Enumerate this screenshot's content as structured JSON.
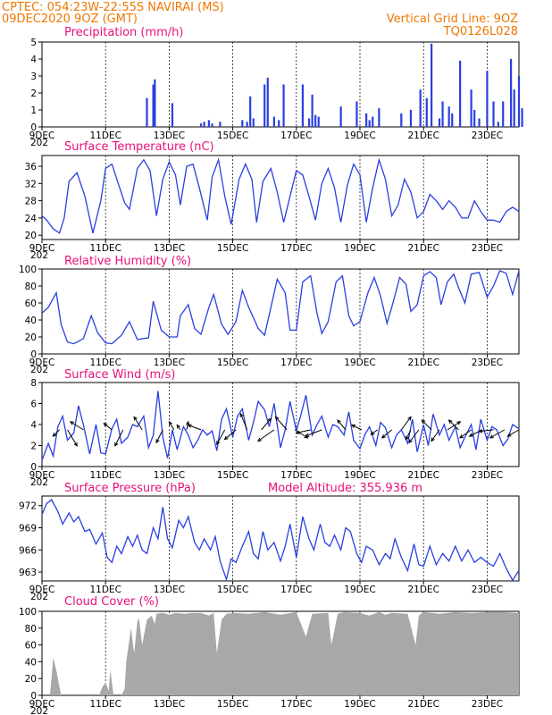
{
  "header": {
    "line1": "CPTEC:  054:23W-22:55S  NAVIRAI (MS)",
    "line2": "09DEC2020 9OZ (GMT)",
    "right1": "Vertical Grid Line: 9OZ",
    "right2": "TQ0126L028"
  },
  "x_ticks": [
    "9DEC",
    "11DEC",
    "13DEC",
    "15DEC",
    "17DEC",
    "19DEC",
    "21DEC",
    "23DEC"
  ],
  "x_tick_fragment": "202",
  "colors": {
    "line": "#2a3fe0",
    "bar": "#2a3fe0",
    "cloud": "#a8a8a8",
    "header": "#ee7700",
    "title": "#e8107a"
  },
  "chart_data": [
    {
      "type": "bar",
      "title": "Precipitation (mm/h)",
      "ylim": [
        0,
        5
      ],
      "yticks": [
        "0",
        "1",
        "2",
        "3",
        "4",
        "5"
      ],
      "x_days": [
        12.3,
        12.5,
        12.55,
        13.1,
        14.0,
        14.1,
        14.25,
        14.35,
        14.6,
        15.3,
        15.45,
        15.55,
        15.65,
        16.0,
        16.1,
        16.3,
        16.45,
        16.6,
        17.2,
        17.4,
        17.5,
        17.6,
        17.7,
        18.4,
        18.9,
        19.2,
        19.3,
        19.4,
        19.6,
        20.3,
        20.6,
        20.9,
        21.1,
        21.25,
        21.5,
        21.6,
        21.8,
        21.9,
        22.15,
        22.5,
        22.6,
        22.75,
        23.0,
        23.2,
        23.35,
        23.5,
        23.75,
        23.85,
        24.0,
        24.1
      ],
      "values": [
        1.7,
        2.5,
        2.8,
        1.4,
        0.2,
        0.3,
        0.4,
        0.2,
        0.3,
        0.4,
        0.3,
        1.8,
        0.5,
        2.5,
        2.9,
        0.6,
        0.4,
        2.5,
        2.5,
        0.5,
        1.9,
        0.7,
        0.6,
        1.2,
        1.5,
        0.8,
        0.4,
        0.6,
        1.1,
        0.8,
        1.0,
        2.2,
        1.7,
        4.9,
        0.5,
        1.5,
        1.2,
        0.8,
        3.9,
        2.2,
        1.0,
        0.5,
        3.3,
        1.5,
        0.3,
        1.5,
        4.0,
        2.2,
        3.0,
        1.1
      ]
    },
    {
      "type": "line",
      "title": "Surface Temperature (nC)",
      "ylim": [
        19,
        38.5
      ],
      "yticks": [
        "20",
        "24",
        "28",
        "32",
        "36"
      ],
      "x": [
        9.0,
        9.15,
        9.35,
        9.55,
        9.7,
        9.85,
        10.1,
        10.35,
        10.6,
        10.85,
        11.0,
        11.2,
        11.4,
        11.6,
        11.75,
        12.0,
        12.2,
        12.4,
        12.6,
        12.8,
        13.0,
        13.2,
        13.35,
        13.55,
        13.75,
        13.95,
        14.2,
        14.35,
        14.55,
        14.75,
        14.95,
        15.2,
        15.4,
        15.6,
        15.75,
        15.95,
        16.2,
        16.4,
        16.6,
        16.8,
        17.0,
        17.2,
        17.4,
        17.6,
        17.8,
        18.0,
        18.2,
        18.4,
        18.6,
        18.8,
        19.0,
        19.2,
        19.4,
        19.6,
        19.8,
        20.0,
        20.2,
        20.4,
        20.6,
        20.8,
        21.0,
        21.2,
        21.4,
        21.6,
        21.8,
        22.0,
        22.2,
        22.4,
        22.6,
        22.8,
        23.0,
        23.2,
        23.4,
        23.6,
        23.8,
        24.0
      ],
      "values": [
        24.5,
        23.5,
        21.5,
        20.5,
        24,
        32.5,
        34.5,
        29,
        20.5,
        28,
        35.5,
        36.5,
        32,
        27.5,
        26,
        35.5,
        37.5,
        35,
        24.5,
        33,
        37,
        34,
        27,
        36,
        36.5,
        31,
        23.5,
        33.5,
        37.5,
        29,
        22.5,
        33,
        36.5,
        33,
        23,
        32.5,
        35.5,
        30,
        23,
        29,
        35,
        34,
        29,
        23.5,
        32,
        35.5,
        31,
        23,
        31.5,
        36.5,
        34,
        23,
        31,
        37.5,
        33,
        24.5,
        27,
        33,
        30,
        24,
        25.5,
        29.5,
        28,
        26,
        28,
        26.5,
        24,
        24,
        28,
        25.5,
        23.5,
        23.5,
        23,
        25.5,
        26.5,
        25.5
      ]
    },
    {
      "type": "line",
      "title": "Relative Humidity (%)",
      "ylim": [
        0,
        100
      ],
      "yticks": [
        "0",
        "20",
        "40",
        "60",
        "80",
        "100"
      ],
      "x": [
        9.0,
        9.2,
        9.45,
        9.6,
        9.8,
        10.0,
        10.3,
        10.55,
        10.75,
        11.0,
        11.2,
        11.5,
        11.75,
        12.0,
        12.35,
        12.5,
        12.75,
        13.0,
        13.25,
        13.35,
        13.6,
        13.8,
        14.0,
        14.25,
        14.4,
        14.65,
        14.85,
        15.1,
        15.3,
        15.5,
        15.8,
        16.0,
        16.2,
        16.4,
        16.65,
        16.8,
        17.0,
        17.2,
        17.45,
        17.65,
        17.8,
        18.0,
        18.25,
        18.45,
        18.65,
        18.8,
        19.0,
        19.25,
        19.45,
        19.65,
        19.85,
        20.0,
        20.25,
        20.45,
        20.6,
        20.8,
        21.0,
        21.2,
        21.4,
        21.55,
        21.75,
        21.95,
        22.1,
        22.3,
        22.5,
        22.75,
        23.0,
        23.2,
        23.4,
        23.6,
        23.8,
        24.0
      ],
      "values": [
        48,
        55,
        72,
        35,
        14,
        12,
        18,
        45,
        25,
        13,
        12,
        22,
        38,
        17,
        19,
        62,
        28,
        20,
        20,
        45,
        58,
        30,
        23,
        55,
        70,
        35,
        23,
        38,
        75,
        55,
        30,
        22,
        55,
        88,
        72,
        28,
        28,
        85,
        92,
        48,
        24,
        38,
        85,
        92,
        45,
        33,
        38,
        72,
        90,
        68,
        36,
        55,
        90,
        82,
        50,
        58,
        92,
        97,
        90,
        58,
        85,
        94,
        78,
        60,
        94,
        96,
        67,
        80,
        98,
        95,
        70,
        98
      ]
    },
    {
      "type": "line",
      "title": "Surface Wind (m/s)",
      "ylim": [
        0,
        8
      ],
      "yticks": [
        "0",
        "2",
        "4",
        "6",
        "8"
      ],
      "x": [
        9.0,
        9.2,
        9.35,
        9.5,
        9.65,
        9.8,
        10.0,
        10.15,
        10.3,
        10.5,
        10.7,
        10.85,
        11.0,
        11.2,
        11.35,
        11.5,
        11.7,
        11.85,
        12.0,
        12.2,
        12.35,
        12.5,
        12.65,
        12.8,
        12.95,
        13.1,
        13.25,
        13.45,
        13.6,
        13.75,
        13.9,
        14.05,
        14.2,
        14.35,
        14.5,
        14.65,
        14.8,
        15.0,
        15.15,
        15.3,
        15.5,
        15.65,
        15.8,
        16.0,
        16.15,
        16.3,
        16.5,
        16.65,
        16.8,
        17.0,
        17.15,
        17.3,
        17.5,
        17.65,
        17.8,
        18.0,
        18.15,
        18.3,
        18.5,
        18.65,
        18.8,
        19.0,
        19.15,
        19.3,
        19.5,
        19.65,
        19.8,
        20.0,
        20.15,
        20.3,
        20.5,
        20.65,
        20.8,
        21.0,
        21.15,
        21.3,
        21.5,
        21.65,
        21.8,
        22.0,
        22.15,
        22.3,
        22.5,
        22.65,
        22.8,
        23.0,
        23.15,
        23.3,
        23.5,
        23.65,
        23.8,
        24.0
      ],
      "values": [
        0.6,
        2.2,
        1.0,
        3.8,
        4.8,
        2.5,
        3.2,
        5.8,
        4.0,
        1.2,
        4.0,
        1.3,
        1.2,
        3.6,
        4.5,
        2.2,
        2.8,
        4.0,
        3.8,
        4.8,
        1.8,
        3.0,
        7.2,
        2.8,
        0.8,
        3.5,
        1.6,
        3.8,
        3.0,
        1.8,
        2.5,
        3.5,
        3.0,
        3.4,
        1.5,
        4.5,
        5.5,
        2.8,
        4.8,
        5.5,
        2.5,
        4.2,
        6.2,
        5.4,
        3.8,
        6.0,
        1.8,
        3.5,
        6.2,
        3.4,
        5.0,
        6.8,
        3.0,
        4.0,
        4.8,
        2.8,
        4.0,
        3.8,
        3.0,
        5.2,
        2.5,
        1.7,
        3.0,
        3.8,
        2.0,
        4.2,
        3.7,
        1.8,
        3.0,
        3.5,
        2.2,
        4.5,
        1.4,
        4.0,
        2.0,
        5.0,
        3.0,
        4.0,
        2.5,
        3.8,
        1.8,
        2.8,
        4.0,
        1.6,
        4.5,
        2.5,
        3.8,
        3.5,
        2.0,
        2.6,
        4.0,
        3.6
      ]
    },
    {
      "type": "line",
      "title": "Surface Pressure (hPa)",
      "annotation": "Model Altitude: 355.936 m",
      "ylim": [
        961.8,
        973.3
      ],
      "yticks": [
        "963",
        "966",
        "969",
        "972"
      ],
      "x": [
        9.0,
        9.15,
        9.3,
        9.5,
        9.65,
        9.85,
        10.0,
        10.15,
        10.35,
        10.5,
        10.7,
        10.9,
        11.05,
        11.2,
        11.35,
        11.5,
        11.7,
        11.85,
        12.0,
        12.15,
        12.3,
        12.5,
        12.65,
        12.8,
        12.95,
        13.1,
        13.3,
        13.45,
        13.6,
        13.8,
        13.95,
        14.1,
        14.3,
        14.45,
        14.6,
        14.8,
        14.95,
        15.1,
        15.3,
        15.5,
        15.65,
        15.8,
        15.95,
        16.1,
        16.3,
        16.5,
        16.65,
        16.8,
        17.0,
        17.2,
        17.4,
        17.55,
        17.75,
        17.9,
        18.05,
        18.2,
        18.4,
        18.55,
        18.7,
        18.9,
        19.05,
        19.2,
        19.4,
        19.6,
        19.8,
        19.95,
        20.1,
        20.3,
        20.5,
        20.7,
        20.85,
        21.0,
        21.2,
        21.4,
        21.6,
        21.8,
        22.0,
        22.2,
        22.4,
        22.6,
        22.8,
        23.0,
        23.2,
        23.4,
        23.6,
        23.8,
        24.0
      ],
      "values": [
        970.8,
        972.3,
        972.8,
        971.2,
        969.5,
        971.0,
        969.8,
        970.5,
        968.5,
        968.8,
        966.8,
        968.3,
        965.0,
        964.3,
        966.5,
        965.5,
        967.8,
        966.5,
        968.0,
        966.0,
        965.5,
        969.0,
        967.5,
        971.8,
        967.5,
        966.3,
        970.0,
        969.0,
        970.5,
        967.0,
        966.0,
        967.5,
        966.0,
        967.8,
        964.5,
        962.0,
        964.8,
        964.3,
        966.5,
        968.5,
        965.5,
        964.8,
        968.5,
        966.0,
        967.0,
        964.5,
        966.5,
        969.5,
        965.0,
        970.5,
        967.5,
        966.0,
        969.5,
        967.0,
        966.5,
        968.0,
        966.0,
        969.0,
        968.5,
        965.5,
        964.3,
        966.5,
        966.0,
        964.0,
        965.5,
        964.8,
        967.5,
        965.0,
        963.2,
        966.8,
        964.0,
        963.8,
        966.5,
        964.0,
        965.5,
        964.5,
        966.5,
        964.5,
        966.0,
        964.3,
        965.0,
        964.3,
        963.8,
        965.5,
        963.5,
        961.9,
        963.2
      ]
    },
    {
      "type": "area",
      "title": "Cloud Cover (%)",
      "ylim": [
        0,
        100
      ],
      "yticks": [
        "0",
        "20",
        "40",
        "60",
        "80",
        "100"
      ],
      "x": [
        9.0,
        9.25,
        9.3,
        9.35,
        9.45,
        9.6,
        10.8,
        10.9,
        11.0,
        11.1,
        11.15,
        11.25,
        11.5,
        11.6,
        11.65,
        11.8,
        11.9,
        12.0,
        12.05,
        12.15,
        12.3,
        12.45,
        12.55,
        12.6,
        12.8,
        13.0,
        13.2,
        13.5,
        13.7,
        14.0,
        14.25,
        14.4,
        14.5,
        14.65,
        14.8,
        15.0,
        15.5,
        16.0,
        16.5,
        17.0,
        17.3,
        17.5,
        18.0,
        18.1,
        18.3,
        18.5,
        19.0,
        19.3,
        19.6,
        19.8,
        20.0,
        20.5,
        20.75,
        20.85,
        21.0,
        21.5,
        22.0,
        22.5,
        23.0,
        23.5,
        24.0
      ],
      "values": [
        0,
        0,
        20,
        45,
        30,
        0,
        0,
        10,
        15,
        5,
        30,
        0,
        0,
        8,
        40,
        80,
        50,
        88,
        92,
        60,
        90,
        95,
        85,
        97,
        98,
        96,
        98,
        97,
        98,
        98,
        95,
        98,
        50,
        90,
        97,
        98,
        97,
        99,
        96,
        99,
        70,
        97,
        98,
        60,
        97,
        99,
        98,
        95,
        99,
        96,
        98,
        97,
        60,
        95,
        99,
        97,
        99,
        98,
        99,
        99,
        98
      ]
    },
    {
      "type": "vector",
      "title": "Surface Wind direction arrows",
      "x_days": [
        9.55,
        9.8,
        10.3,
        11.2,
        11.55,
        12.15,
        12.8,
        13.15,
        13.35,
        13.55,
        14.0,
        14.75,
        15.1,
        15.45,
        15.9,
        16.3,
        16.7,
        16.95,
        17.45,
        17.8,
        18.55,
        19.05,
        19.55,
        20.0,
        20.3,
        20.6,
        20.85,
        21.25,
        21.5,
        21.75,
        22.1,
        22.5,
        22.85,
        23.2,
        23.55,
        24.0
      ],
      "u": [
        -0.4,
        0.6,
        -0.8,
        -0.5,
        -0.5,
        -0.5,
        -0.4,
        -0.3,
        -0.2,
        0.1,
        -0.8,
        -0.5,
        -0.7,
        -0.4,
        0.6,
        -1.0,
        -0.7,
        0.8,
        -0.9,
        -1.0,
        -0.5,
        -0.6,
        -0.4,
        -0.6,
        0.6,
        -0.3,
        -0.6,
        -0.6,
        -0.5,
        0.8,
        -0.6,
        -0.7,
        -0.8,
        -0.9,
        -0.9,
        -0.7
      ],
      "v": [
        -0.4,
        -1.0,
        0.5,
        0.4,
        -1.0,
        0.8,
        -0.8,
        0.5,
        0.3,
        0.5,
        0.3,
        -0.9,
        -0.6,
        1.0,
        0.7,
        -0.7,
        0.8,
        -0.5,
        -0.2,
        -0.4,
        0.6,
        0.3,
        -0.3,
        -0.5,
        0.8,
        -0.6,
        -0.8,
        0.6,
        -0.7,
        0.5,
        0.6,
        -0.5,
        -0.4,
        -0.1,
        -0.5,
        -0.4
      ]
    }
  ]
}
